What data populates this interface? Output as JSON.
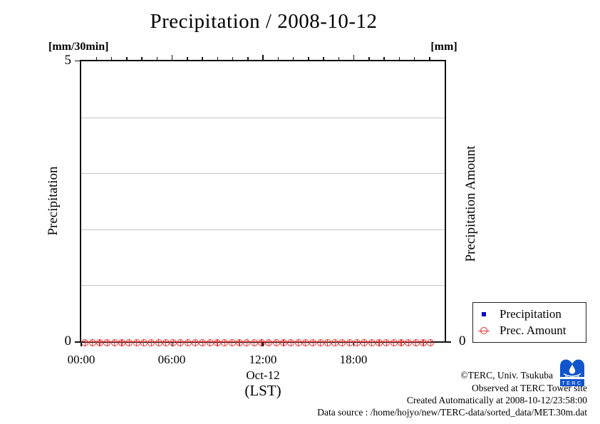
{
  "title": "Precipitation / 2008-10-12",
  "axes": {
    "left": {
      "unit": "[mm/30min]",
      "label": "Precipitation",
      "ticks": [
        "5",
        "0"
      ],
      "range": [
        0,
        5
      ]
    },
    "right": {
      "unit": "[mm]",
      "label": "Precipitation Amount",
      "ticks": [
        "0"
      ]
    },
    "x": {
      "ticks": [
        "00:00",
        "06:00",
        "12:00",
        "18:00"
      ],
      "date_label": "Oct-12",
      "tz_label": "(LST)"
    }
  },
  "legend": [
    {
      "label": "Precipitation",
      "marker": "filled-square",
      "color": "#0000cc"
    },
    {
      "label": "Prec. Amount",
      "marker": "open-circle",
      "color": "#e03232"
    }
  ],
  "footer": {
    "lines": [
      "©TERC, Univ. Tsukuba",
      "Observed at TERC Tower site",
      "Created Automatically at 2008-10-12/23:58:00",
      "Data source : /home/hojyo/new/TERC-data/sorted_data/MET.30m.dat"
    ],
    "logo_text": "TERC"
  },
  "colors": {
    "series_red": "#e03232",
    "series_blue": "#0000cc",
    "grid": "#c4c4c4",
    "logo_blue": "#1155cc"
  },
  "chart_data": {
    "type": "line",
    "title": "Precipitation / 2008-10-12",
    "xlabel": "Oct-12 (LST)",
    "ylabel_left": "Precipitation [mm/30min]",
    "ylabel_right": "Precipitation Amount [mm]",
    "ylim_left": [
      0,
      5
    ],
    "grid": "horizontal-only",
    "legend_position": "outside-bottom-right",
    "x": [
      "00:00",
      "00:30",
      "01:00",
      "01:30",
      "02:00",
      "02:30",
      "03:00",
      "03:30",
      "04:00",
      "04:30",
      "05:00",
      "05:30",
      "06:00",
      "06:30",
      "07:00",
      "07:30",
      "08:00",
      "08:30",
      "09:00",
      "09:30",
      "10:00",
      "10:30",
      "11:00",
      "11:30",
      "12:00",
      "12:30",
      "13:00",
      "13:30",
      "14:00",
      "14:30",
      "15:00",
      "15:30",
      "16:00",
      "16:30",
      "17:00",
      "17:30",
      "18:00",
      "18:30",
      "19:00",
      "19:30",
      "20:00",
      "20:30",
      "21:00",
      "21:30",
      "22:00",
      "22:30",
      "23:00",
      "23:30"
    ],
    "series": [
      {
        "name": "Precipitation",
        "marker": "filled-square",
        "color": "#0000cc",
        "values": [
          0,
          0,
          0,
          0,
          0,
          0,
          0,
          0,
          0,
          0,
          0,
          0,
          0,
          0,
          0,
          0,
          0,
          0,
          0,
          0,
          0,
          0,
          0,
          0,
          0,
          0,
          0,
          0,
          0,
          0,
          0,
          0,
          0,
          0,
          0,
          0,
          0,
          0,
          0,
          0,
          0,
          0,
          0,
          0,
          0,
          0,
          0,
          0
        ]
      },
      {
        "name": "Prec. Amount",
        "marker": "open-circle",
        "color": "#e03232",
        "values": [
          0,
          0,
          0,
          0,
          0,
          0,
          0,
          0,
          0,
          0,
          0,
          0,
          0,
          0,
          0,
          0,
          0,
          0,
          0,
          0,
          0,
          0,
          0,
          0,
          0,
          0,
          0,
          0,
          0,
          0,
          0,
          0,
          0,
          0,
          0,
          0,
          0,
          0,
          0,
          0,
          0,
          0,
          0,
          0,
          0,
          0,
          0,
          0
        ]
      }
    ]
  }
}
